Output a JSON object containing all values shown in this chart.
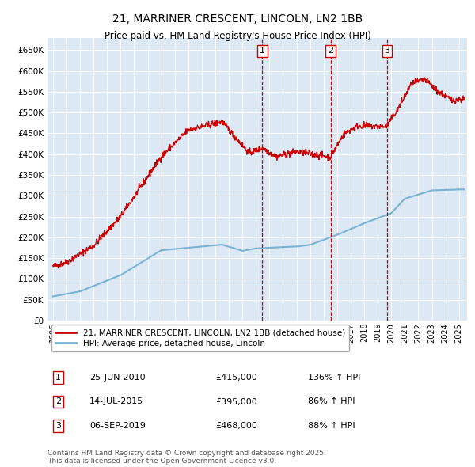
{
  "title": "21, MARRINER CRESCENT, LINCOLN, LN2 1BB",
  "subtitle": "Price paid vs. HM Land Registry's House Price Index (HPI)",
  "plot_bg": "#dce9f5",
  "red_color": "#cc0000",
  "blue_color": "#7ab3d4",
  "ylim": [
    0,
    680000
  ],
  "xlim_start": 1994.6,
  "xlim_end": 2025.6,
  "legend_entries": [
    "21, MARRINER CRESCENT, LINCOLN, LN2 1BB (detached house)",
    "HPI: Average price, detached house, Lincoln"
  ],
  "sale_dates": [
    2010.48,
    2015.53,
    2019.68
  ],
  "sale_labels": [
    "1",
    "2",
    "3"
  ],
  "table_data": [
    [
      "1",
      "25-JUN-2010",
      "£415,000",
      "136% ↑ HPI"
    ],
    [
      "2",
      "14-JUL-2015",
      "£395,000",
      "86% ↑ HPI"
    ],
    [
      "3",
      "06-SEP-2019",
      "£468,000",
      "88% ↑ HPI"
    ]
  ],
  "footer": "Contains HM Land Registry data © Crown copyright and database right 2025.\nThis data is licensed under the Open Government Licence v3.0.",
  "ytick_labels": [
    "£0",
    "£50K",
    "£100K",
    "£150K",
    "£200K",
    "£250K",
    "£300K",
    "£350K",
    "£400K",
    "£450K",
    "£500K",
    "£550K",
    "£600K",
    "£650K"
  ],
  "ytick_values": [
    0,
    50000,
    100000,
    150000,
    200000,
    250000,
    300000,
    350000,
    400000,
    450000,
    500000,
    550000,
    600000,
    650000
  ],
  "xtick_values": [
    1995,
    1996,
    1997,
    1998,
    1999,
    2000,
    2001,
    2002,
    2003,
    2004,
    2005,
    2006,
    2007,
    2008,
    2009,
    2010,
    2011,
    2012,
    2013,
    2014,
    2015,
    2016,
    2017,
    2018,
    2019,
    2020,
    2021,
    2022,
    2023,
    2024,
    2025
  ]
}
